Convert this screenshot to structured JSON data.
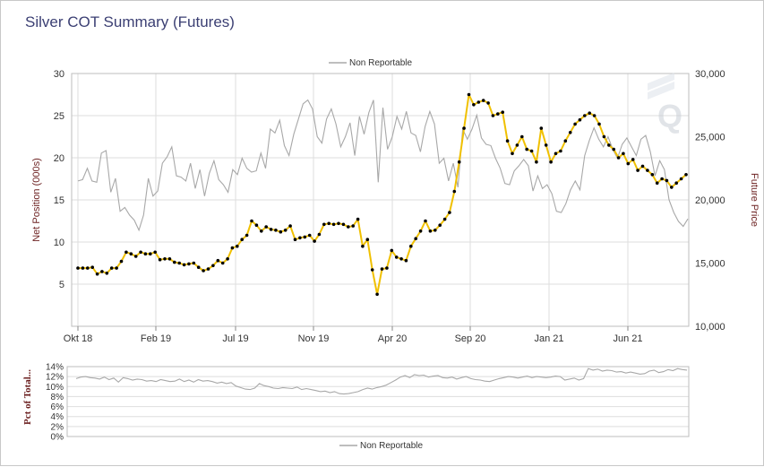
{
  "title": "Silver COT Summary (Futures)",
  "colors": {
    "net_line": "#f0c000",
    "net_marker": "#000000",
    "price_line": "#a8a8a8",
    "grid": "#dedede",
    "axis_title": "#6b1f1f",
    "title": "#3b3f73"
  },
  "chart_data": [
    {
      "type": "line",
      "title": "",
      "legend": {
        "placement": "top-center",
        "entries": [
          "Non Reportable"
        ]
      },
      "xlabel": "",
      "ylabel_left": "Net Position (000s)",
      "ylabel_right": "Future Price",
      "grid": true,
      "x_ticks": [
        "Okt 18",
        "Feb 19",
        "Jul 19",
        "Nov 19",
        "Apr 20",
        "Sep 20",
        "Jan 21",
        "Jun 21"
      ],
      "y_left_ticks": [
        "5",
        "10",
        "15",
        "20",
        "25",
        "30"
      ],
      "y_left_range": [
        0,
        30
      ],
      "y_right_ticks": [
        "10,000",
        "15,000",
        "20,000",
        "25,000",
        "30,000"
      ],
      "y_right_range": [
        10000,
        30000
      ],
      "series": [
        {
          "name": "Non Reportable",
          "axis": "left",
          "values": [
            6.9,
            6.9,
            6.9,
            7.0,
            6.2,
            6.5,
            6.3,
            6.9,
            6.9,
            7.7,
            8.8,
            8.6,
            8.3,
            8.8,
            8.6,
            8.6,
            8.8,
            7.9,
            8.0,
            8.0,
            7.6,
            7.5,
            7.3,
            7.4,
            7.5,
            7.0,
            6.6,
            6.8,
            7.2,
            7.8,
            7.5,
            8.0,
            9.3,
            9.5,
            10.3,
            10.8,
            12.5,
            12.0,
            11.3,
            11.8,
            11.5,
            11.4,
            11.2,
            11.4,
            11.9,
            10.3,
            10.5,
            10.6,
            10.8,
            10.1,
            10.9,
            12.1,
            12.2,
            12.1,
            12.2,
            12.1,
            11.8,
            11.9,
            12.7,
            9.5,
            10.3,
            6.7,
            3.8,
            6.8,
            6.9,
            9.0,
            8.2,
            8.0,
            7.8,
            9.5,
            10.4,
            11.3,
            12.5,
            11.3,
            11.4,
            12.0,
            12.7,
            13.5,
            16.0,
            19.5,
            23.5,
            27.5,
            26.3,
            26.6,
            26.8,
            26.5,
            25.0,
            25.2,
            25.4,
            22.0,
            20.5,
            21.5,
            22.5,
            21.0,
            20.8,
            19.5,
            23.5,
            21.5,
            19.5,
            20.5,
            20.8,
            22.0,
            23.0,
            24.0,
            24.5,
            25.0,
            25.3,
            25.0,
            24.0,
            22.5,
            21.5,
            21.0,
            20.0,
            20.5,
            19.3,
            19.8,
            18.5,
            19.0,
            18.5,
            18.0,
            17.0,
            17.5,
            17.3,
            16.5,
            17.0,
            17.5,
            18.0
          ],
          "markers": true
        },
        {
          "name": "Future Price",
          "axis": "right",
          "values": [
            21500,
            21600,
            22500,
            21500,
            21400,
            23700,
            23900,
            20600,
            21700,
            19100,
            19400,
            18800,
            18400,
            17600,
            18800,
            21700,
            20300,
            20700,
            22900,
            23400,
            24200,
            21900,
            21800,
            21500,
            22900,
            20900,
            22400,
            20300,
            22100,
            23100,
            21600,
            21200,
            20600,
            22400,
            22000,
            23300,
            22500,
            22200,
            22300,
            23700,
            22500,
            25600,
            25300,
            26300,
            24300,
            23500,
            25200,
            26400,
            27600,
            27900,
            27200,
            25000,
            24500,
            26400,
            27200,
            26000,
            24200,
            25000,
            26100,
            23500,
            26600,
            25200,
            26900,
            27900,
            21400,
            27300,
            24000,
            25000,
            26600,
            25600,
            27000,
            25300,
            25100,
            23800,
            25800,
            27000,
            26000,
            22900,
            23300,
            21500,
            22900,
            21000,
            25600,
            24800,
            25600,
            26700,
            24900,
            24400,
            24300,
            23300,
            22500,
            21300,
            21200,
            22300,
            22700,
            23200,
            22700,
            20700,
            21900,
            20900,
            21200,
            20500,
            19100,
            19000,
            19700,
            20800,
            21500,
            20800,
            23500,
            24700,
            25700,
            24800,
            24200,
            25000,
            24000,
            23300,
            24400,
            24900,
            24200,
            23500,
            24800,
            25100,
            23800,
            21900,
            23100,
            22400,
            20000,
            19000,
            18300,
            17900,
            18500
          ],
          "note_unused": ""
        }
      ]
    },
    {
      "type": "line",
      "title": "",
      "ylabel": "Pct of Total...",
      "legend": {
        "placement": "bottom-center",
        "entries": [
          "Non Reportable"
        ]
      },
      "y_ticks": [
        "0%",
        "2%",
        "4%",
        "6%",
        "8%",
        "10%",
        "12%",
        "14%"
      ],
      "y_range": [
        0,
        14
      ],
      "grid": true,
      "series": [
        {
          "name": "Non Reportable",
          "values": [
            11.6,
            11.9,
            12.0,
            11.8,
            11.7,
            11.5,
            11.9,
            11.4,
            11.7,
            10.9,
            11.8,
            11.6,
            11.3,
            11.5,
            11.4,
            11.1,
            11.2,
            11.0,
            11.4,
            11.2,
            11.0,
            11.1,
            11.5,
            11.0,
            11.3,
            10.9,
            11.4,
            11.1,
            11.2,
            11.0,
            10.7,
            10.9,
            10.6,
            10.8,
            10.1,
            9.8,
            9.5,
            9.4,
            9.7,
            10.6,
            10.2,
            10.0,
            9.7,
            9.6,
            9.8,
            9.7,
            9.6,
            9.9,
            9.4,
            9.6,
            9.4,
            9.2,
            9.0,
            9.1,
            8.8,
            9.0,
            8.6,
            8.5,
            8.6,
            8.8,
            9.0,
            9.4,
            9.7,
            9.5,
            9.8,
            10.0,
            10.3,
            10.8,
            11.3,
            11.9,
            12.2,
            11.8,
            12.4,
            12.2,
            12.3,
            11.9,
            12.1,
            12.2,
            11.8,
            11.7,
            11.9,
            11.5,
            11.8,
            12.0,
            11.6,
            11.4,
            11.3,
            11.1,
            11.0,
            11.3,
            11.6,
            11.8,
            12.0,
            11.9,
            11.7,
            11.9,
            12.1,
            11.8,
            12.0,
            11.9,
            11.8,
            11.9,
            12.1,
            12.0,
            11.3,
            11.5,
            11.7,
            11.3,
            11.6,
            13.6,
            13.3,
            13.5,
            13.1,
            13.3,
            13.2,
            12.9,
            13.0,
            12.7,
            12.9,
            12.7,
            12.5,
            12.6,
            13.1,
            13.3,
            12.8,
            13.0,
            13.4,
            13.2,
            13.6,
            13.4,
            13.3
          ]
        }
      ]
    }
  ]
}
